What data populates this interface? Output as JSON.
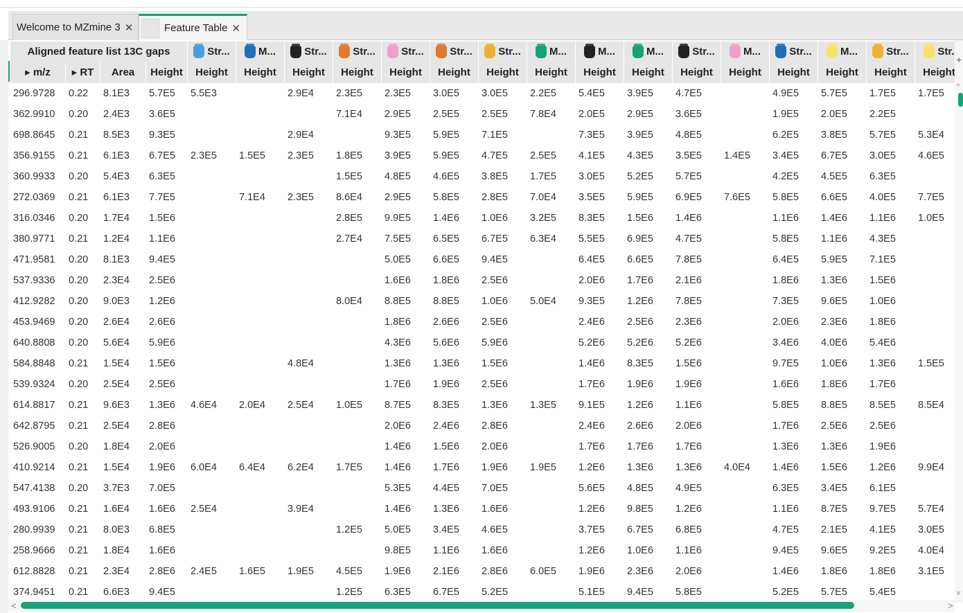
{
  "tabs": [
    {
      "label": "Welcome to MZmine 3",
      "close": "✕"
    },
    {
      "label": "Feature Table",
      "close": "✕"
    }
  ],
  "colors": {
    "accent": "#16a179",
    "header_bg": "#e6e6e6"
  },
  "table": {
    "group_header": "Aligned feature list 13C gaps",
    "sample_headers": [
      {
        "label": "Str...",
        "icon": "sample-blue-icon",
        "color": "#4a9fd8"
      },
      {
        "label": "M...",
        "icon": "sample-blue-icon",
        "color": "#1f6fb5"
      },
      {
        "label": "Str...",
        "icon": "sample-black-icon",
        "color": "#222222"
      },
      {
        "label": "Str...",
        "icon": "sample-orange-icon",
        "color": "#e07a2c"
      },
      {
        "label": "Str...",
        "icon": "sample-pink-icon",
        "color": "#f0a0c8"
      },
      {
        "label": "Str...",
        "icon": "sample-orange-icon",
        "color": "#e07a2c"
      },
      {
        "label": "Str...",
        "icon": "sample-yellow-icon",
        "color": "#f0b030"
      },
      {
        "label": "M...",
        "icon": "sample-teal-icon",
        "color": "#16a179"
      },
      {
        "label": "M...",
        "icon": "sample-black-icon",
        "color": "#222222"
      },
      {
        "label": "M...",
        "icon": "sample-teal-icon",
        "color": "#16a179"
      },
      {
        "label": "Str...",
        "icon": "sample-black-icon",
        "color": "#222222"
      },
      {
        "label": "M...",
        "icon": "sample-pink-icon",
        "color": "#f0a0c8"
      },
      {
        "label": "Str...",
        "icon": "sample-blue-icon",
        "color": "#1f6fb5"
      },
      {
        "label": "M...",
        "icon": "sample-yellow-icon",
        "color": "#f5e36a"
      },
      {
        "label": "Str...",
        "icon": "sample-yellow-icon",
        "color": "#f0b030"
      },
      {
        "label": "Str.",
        "icon": "sample-yellow-icon",
        "color": "#f5e36a"
      }
    ],
    "columns": [
      "▸ m/z",
      "▸ RT",
      "Area",
      "Height",
      "Height",
      "Height",
      "Height",
      "Height",
      "Height",
      "Height",
      "Height",
      "Height",
      "Height",
      "Height",
      "Height",
      "Height",
      "Height",
      "Height",
      "Height",
      "Height"
    ],
    "rows": [
      [
        "296.9728",
        "0.22",
        "8.1E3",
        "5.7E5",
        "5.5E3",
        "",
        "2.9E4",
        "2.3E5",
        "2.3E5",
        "3.0E5",
        "3.0E5",
        "2.2E5",
        "5.4E5",
        "3.9E5",
        "4.7E5",
        "",
        "4.9E5",
        "5.7E5",
        "1.7E5",
        "1.7E5"
      ],
      [
        "362.9910",
        "0.20",
        "2.4E3",
        "3.6E5",
        "",
        "",
        "",
        "7.1E4",
        "2.9E5",
        "2.5E5",
        "2.5E5",
        "7.8E4",
        "2.0E5",
        "2.9E5",
        "3.6E5",
        "",
        "1.9E5",
        "2.0E5",
        "2.2E5",
        ""
      ],
      [
        "698.8645",
        "0.21",
        "8.5E3",
        "9.3E5",
        "",
        "",
        "2.9E4",
        "",
        "9.3E5",
        "5.9E5",
        "7.1E5",
        "",
        "7.3E5",
        "3.9E5",
        "4.8E5",
        "",
        "6.2E5",
        "3.8E5",
        "5.7E5",
        "5.3E4"
      ],
      [
        "356.9155",
        "0.21",
        "6.1E3",
        "6.7E5",
        "2.3E5",
        "1.5E5",
        "2.3E5",
        "1.8E5",
        "3.9E5",
        "5.9E5",
        "4.7E5",
        "2.5E5",
        "4.1E5",
        "4.3E5",
        "3.5E5",
        "1.4E5",
        "3.4E5",
        "6.7E5",
        "3.0E5",
        "4.6E5"
      ],
      [
        "360.9933",
        "0.20",
        "5.4E3",
        "6.3E5",
        "",
        "",
        "",
        "1.5E5",
        "4.8E5",
        "4.6E5",
        "3.8E5",
        "1.7E5",
        "3.0E5",
        "5.2E5",
        "5.7E5",
        "",
        "4.2E5",
        "4.5E5",
        "6.3E5",
        ""
      ],
      [
        "272.0369",
        "0.21",
        "6.1E3",
        "7.7E5",
        "",
        "7.1E4",
        "2.3E5",
        "8.6E4",
        "2.9E5",
        "5.8E5",
        "2.8E5",
        "7.0E4",
        "3.5E5",
        "5.9E5",
        "6.9E5",
        "7.6E5",
        "5.8E5",
        "6.6E5",
        "4.0E5",
        "7.7E5"
      ],
      [
        "316.0346",
        "0.20",
        "1.7E4",
        "1.5E6",
        "",
        "",
        "",
        "2.8E5",
        "9.9E5",
        "1.4E6",
        "1.0E6",
        "3.2E5",
        "8.3E5",
        "1.5E6",
        "1.4E6",
        "",
        "1.1E6",
        "1.4E6",
        "1.1E6",
        "1.0E5"
      ],
      [
        "380.9771",
        "0.21",
        "1.2E4",
        "1.1E6",
        "",
        "",
        "",
        "2.7E4",
        "7.5E5",
        "6.5E5",
        "6.7E5",
        "6.3E4",
        "5.5E5",
        "6.9E5",
        "4.7E5",
        "",
        "5.8E5",
        "1.1E6",
        "4.3E5",
        ""
      ],
      [
        "471.9581",
        "0.20",
        "8.1E3",
        "9.4E5",
        "",
        "",
        "",
        "",
        "5.0E5",
        "6.6E5",
        "9.4E5",
        "",
        "6.4E5",
        "6.6E5",
        "7.8E5",
        "",
        "6.4E5",
        "5.9E5",
        "7.1E5",
        ""
      ],
      [
        "537.9336",
        "0.20",
        "2.3E4",
        "2.5E6",
        "",
        "",
        "",
        "",
        "1.6E6",
        "1.8E6",
        "2.5E6",
        "",
        "2.0E6",
        "1.7E6",
        "2.1E6",
        "",
        "1.8E6",
        "1.3E6",
        "1.5E6",
        ""
      ],
      [
        "412.9282",
        "0.20",
        "9.0E3",
        "1.2E6",
        "",
        "",
        "",
        "8.0E4",
        "8.8E5",
        "8.8E5",
        "1.0E6",
        "5.0E4",
        "9.3E5",
        "1.2E6",
        "7.8E5",
        "",
        "7.3E5",
        "9.6E5",
        "1.0E6",
        ""
      ],
      [
        "453.9469",
        "0.20",
        "2.6E4",
        "2.6E6",
        "",
        "",
        "",
        "",
        "1.8E6",
        "2.6E6",
        "2.5E6",
        "",
        "2.4E6",
        "2.5E6",
        "2.3E6",
        "",
        "2.0E6",
        "2.3E6",
        "1.8E6",
        ""
      ],
      [
        "640.8808",
        "0.20",
        "5.6E4",
        "5.9E6",
        "",
        "",
        "",
        "",
        "4.3E6",
        "5.6E6",
        "5.9E6",
        "",
        "5.2E6",
        "5.2E6",
        "5.2E6",
        "",
        "3.4E6",
        "4.0E6",
        "5.4E6",
        ""
      ],
      [
        "584.8848",
        "0.21",
        "1.5E4",
        "1.5E6",
        "",
        "",
        "4.8E4",
        "",
        "1.3E6",
        "1.3E6",
        "1.5E6",
        "",
        "1.4E6",
        "8.3E5",
        "1.5E6",
        "",
        "9.7E5",
        "1.0E6",
        "1.3E6",
        "1.5E5"
      ],
      [
        "539.9324",
        "0.20",
        "2.5E4",
        "2.5E6",
        "",
        "",
        "",
        "",
        "1.7E6",
        "1.9E6",
        "2.5E6",
        "",
        "1.7E6",
        "1.9E6",
        "1.9E6",
        "",
        "1.6E6",
        "1.8E6",
        "1.7E6",
        ""
      ],
      [
        "614.8817",
        "0.21",
        "9.6E3",
        "1.3E6",
        "4.6E4",
        "2.0E4",
        "2.5E4",
        "1.0E5",
        "8.7E5",
        "8.3E5",
        "1.3E6",
        "1.3E5",
        "9.1E5",
        "1.2E6",
        "1.1E6",
        "",
        "5.8E5",
        "8.8E5",
        "8.5E5",
        "8.5E4"
      ],
      [
        "642.8795",
        "0.21",
        "2.5E4",
        "2.8E6",
        "",
        "",
        "",
        "",
        "2.0E6",
        "2.4E6",
        "2.8E6",
        "",
        "2.4E6",
        "2.6E6",
        "2.0E6",
        "",
        "1.7E6",
        "2.5E6",
        "2.5E6",
        ""
      ],
      [
        "526.9005",
        "0.20",
        "1.8E4",
        "2.0E6",
        "",
        "",
        "",
        "",
        "1.4E6",
        "1.5E6",
        "2.0E6",
        "",
        "1.7E6",
        "1.7E6",
        "1.7E6",
        "",
        "1.3E6",
        "1.3E6",
        "1.9E6",
        ""
      ],
      [
        "410.9214",
        "0.21",
        "1.5E4",
        "1.9E6",
        "6.0E4",
        "6.4E4",
        "6.2E4",
        "1.7E5",
        "1.4E6",
        "1.7E6",
        "1.9E6",
        "1.9E5",
        "1.2E6",
        "1.3E6",
        "1.3E6",
        "4.0E4",
        "1.4E6",
        "1.5E6",
        "1.2E6",
        "9.9E4"
      ],
      [
        "547.4138",
        "0.20",
        "3.7E3",
        "7.0E5",
        "",
        "",
        "",
        "",
        "5.3E5",
        "4.4E5",
        "7.0E5",
        "",
        "5.6E5",
        "4.8E5",
        "4.9E5",
        "",
        "6.3E5",
        "3.4E5",
        "6.1E5",
        ""
      ],
      [
        "493.9106",
        "0.21",
        "1.6E4",
        "1.6E6",
        "2.5E4",
        "",
        "3.9E4",
        "",
        "1.4E6",
        "1.3E6",
        "1.6E6",
        "",
        "1.2E6",
        "9.8E5",
        "1.2E6",
        "",
        "1.1E6",
        "8.7E5",
        "9.7E5",
        "5.7E4"
      ],
      [
        "280.9939",
        "0.21",
        "8.0E3",
        "6.8E5",
        "",
        "",
        "",
        "1.2E5",
        "5.0E5",
        "3.4E5",
        "4.6E5",
        "",
        "3.7E5",
        "6.7E5",
        "6.8E5",
        "",
        "4.7E5",
        "2.1E5",
        "4.1E5",
        "3.0E5"
      ],
      [
        "258.9666",
        "0.21",
        "1.8E4",
        "1.6E6",
        "",
        "",
        "",
        "",
        "9.8E5",
        "1.1E6",
        "1.6E6",
        "",
        "1.2E6",
        "1.0E6",
        "1.1E6",
        "",
        "9.4E5",
        "9.6E5",
        "9.2E5",
        "4.0E4"
      ],
      [
        "612.8828",
        "0.21",
        "2.3E4",
        "2.8E6",
        "2.4E5",
        "1.6E5",
        "1.9E5",
        "4.5E5",
        "1.9E6",
        "2.1E6",
        "2.8E6",
        "6.0E5",
        "1.9E6",
        "2.3E6",
        "2.0E6",
        "",
        "1.4E6",
        "1.8E6",
        "1.8E6",
        "3.1E5"
      ],
      [
        "374.9451",
        "0.21",
        "6.6E3",
        "9.4E5",
        "",
        "",
        "",
        "1.2E5",
        "6.3E5",
        "6.7E5",
        "5.2E5",
        "",
        "5.1E5",
        "9.4E5",
        "5.8E5",
        "",
        "5.2E5",
        "5.7E5",
        "5.4E5",
        ""
      ]
    ]
  },
  "scroll": {
    "plus": "+",
    "up": "^",
    "down": "v",
    "left": "<",
    "right": ">"
  }
}
